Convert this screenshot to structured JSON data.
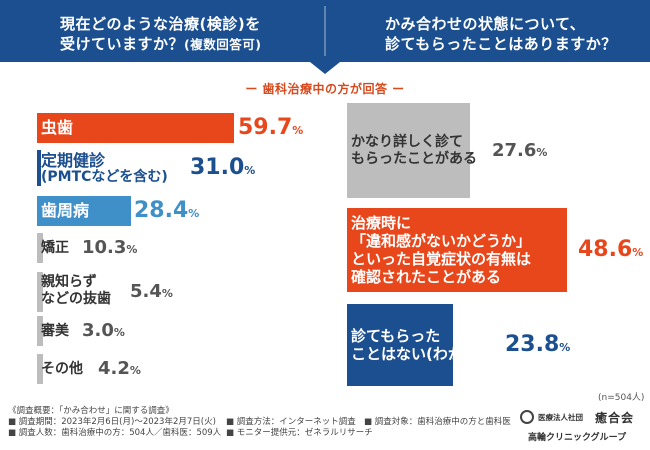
{
  "header": {
    "left_question_line1": "現在どのような治療(検診)を",
    "left_question_line2": "受けていますか？",
    "left_question_note": "(複数回答可)",
    "right_question_line1": "かみ合わせの状態について、",
    "right_question_line2": "診てもらったことはありますか？",
    "color": "#1c4f8f"
  },
  "subtitle": "ー 歯科治療中の方が回答 ー",
  "chart_data": [
    {
      "type": "bar",
      "orientation": "horizontal",
      "categories": [
        "虫歯",
        "定期健診(PMTCなどを含む)",
        "歯周病",
        "矯正",
        "親知らずなどの抜歯",
        "審美",
        "その他"
      ],
      "values": [
        59.7,
        31.0,
        28.4,
        10.3,
        5.4,
        3.0,
        4.2
      ],
      "labels": [
        "59.7%",
        "31.0%",
        "28.4%",
        "10.3%",
        "5.4%",
        "3.0%",
        "4.2%"
      ],
      "colors": [
        "#e8471c",
        "#1c4f8f",
        "#3f8fc9",
        "#bdbdbd",
        "#bdbdbd",
        "#bdbdbd",
        "#bdbdbd"
      ]
    },
    {
      "type": "bar",
      "orientation": "vertical-stacked-blocks",
      "categories": [
        "かなり詳しく診てもらったことがある",
        "治療時に「違和感がないかどうか」といった自覚症状の有無は確認されたことがある",
        "診てもらったことはない(わからない)"
      ],
      "values": [
        27.6,
        48.6,
        23.8
      ],
      "labels": [
        "27.6%",
        "48.6%",
        "23.8%"
      ],
      "colors": [
        "#bdbdbd",
        "#e8471c",
        "#1c4f8f"
      ]
    }
  ],
  "left_labels": [
    {
      "line1": "虫歯",
      "line2": "",
      "color": "#ffffff"
    },
    {
      "line1": "定期健診",
      "line2": "(PMTCなどを含む)",
      "color": "#1c4f8f"
    },
    {
      "line1": "歯周病",
      "line2": "",
      "color": "#ffffff"
    },
    {
      "line1": "矯正",
      "line2": "",
      "color": "#333333"
    },
    {
      "line1": "親知らず",
      "line2": "などの抜歯",
      "color": "#333333"
    },
    {
      "line1": "審美",
      "line2": "",
      "color": "#333333"
    },
    {
      "line1": "その他",
      "line2": "",
      "color": "#333333"
    }
  ],
  "left_pcts": [
    {
      "num": "59.7",
      "unit": "%",
      "color": "#e8471c"
    },
    {
      "num": "31.0",
      "unit": "%",
      "color": "#1c4f8f"
    },
    {
      "num": "28.4",
      "unit": "%",
      "color": "#3f8fc9"
    },
    {
      "num": "10.3",
      "unit": "%",
      "color": "#555555"
    },
    {
      "num": "5.4",
      "unit": "%",
      "color": "#555555"
    },
    {
      "num": "3.0",
      "unit": "%",
      "color": "#555555"
    },
    {
      "num": "4.2",
      "unit": "%",
      "color": "#555555"
    }
  ],
  "right_labels": [
    {
      "line1": "かなり詳しく診て",
      "line2": "もらったことがある",
      "line3": "",
      "line4": "",
      "color": "#333333"
    },
    {
      "line1": "治療時に",
      "line2": "「違和感がないかどうか」",
      "line3": "といった自覚症状の有無は",
      "line4": "確認されたことがある",
      "color": "#ffffff"
    },
    {
      "line1": "診てもらった",
      "line2": "ことはない(わからない)",
      "line3": "",
      "line4": "",
      "color": "#ffffff"
    }
  ],
  "right_pcts": [
    {
      "num": "27.6",
      "unit": "%",
      "color": "#555555"
    },
    {
      "num": "48.6",
      "unit": "%",
      "color": "#e8471c"
    },
    {
      "num": "23.8",
      "unit": "%",
      "color": "#1c4f8f"
    }
  ],
  "n_note": "(n=504人)",
  "survey": {
    "line1": "《調査概要：「かみ合わせ」に関する調査》",
    "period": "■ 調査期間：2023年2月6日(月)〜2023年2月7日(火)",
    "people": "■ 調査人数：歯科治療中の方：504人／歯科医：509人",
    "method": "■ 調査方法：インターネット調査",
    "monitor": "■ モニター提供元：ゼネラルリサーチ",
    "target": "■ 調査対象：歯科治療中の方と歯科医"
  },
  "logo": {
    "org_small": "医療法人社団",
    "org_name": "癒合会",
    "group": "高輪クリニックグループ"
  }
}
